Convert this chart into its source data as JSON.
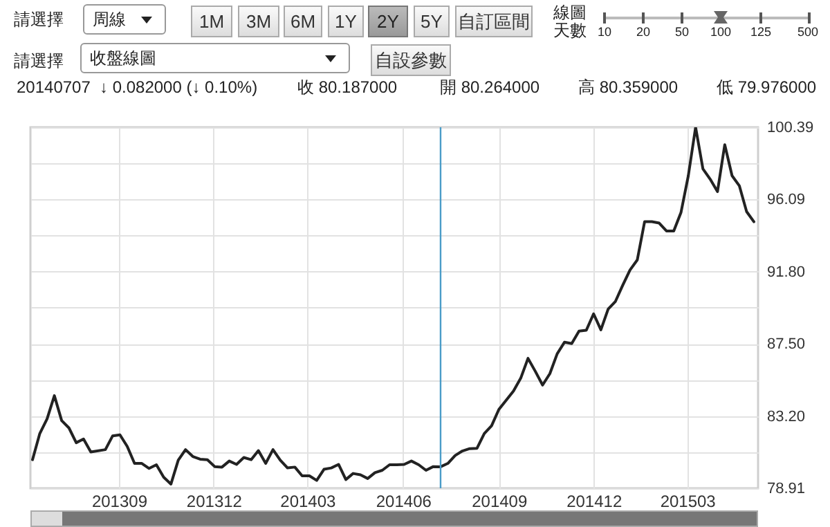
{
  "chart_data": {
    "type": "line",
    "annotations": [
      "請選擇",
      "周線",
      "1M",
      "3M",
      "6M",
      "1Y",
      "2Y",
      "5Y",
      "自訂區間",
      "線圖天數",
      "10",
      "20",
      "50",
      "100",
      "125",
      "500",
      "請選擇",
      "收盤線圖",
      "自設參數",
      "20140707",
      "↓ 0.082000 (↓ 0.10%)",
      "收 80.187000",
      "開 80.264000",
      "高 80.359000",
      "低 79.976000"
    ],
    "x": [
      "2013-06-10",
      "2013-06-17",
      "2013-06-24",
      "2013-07-01",
      "2013-07-08",
      "2013-07-15",
      "2013-07-22",
      "2013-07-29",
      "2013-08-05",
      "2013-08-19",
      "2013-08-26",
      "2013-09-02",
      "2013-09-09",
      "2013-09-16",
      "2013-09-23",
      "2013-09-30",
      "2013-10-07",
      "2013-10-14",
      "2013-10-21",
      "2013-10-28",
      "2013-11-04",
      "2013-11-11",
      "2013-11-18",
      "2013-11-25",
      "2013-12-02",
      "2013-12-09",
      "2013-12-16",
      "2013-12-23",
      "2013-12-30",
      "2014-01-06",
      "2014-01-13",
      "2014-01-20",
      "2014-01-27",
      "2014-02-03",
      "2014-02-10",
      "2014-02-17",
      "2014-02-24",
      "2014-03-03",
      "2014-03-10",
      "2014-03-17",
      "2014-03-24",
      "2014-03-31",
      "2014-04-07",
      "2014-04-14",
      "2014-04-21",
      "2014-04-28",
      "2014-05-05",
      "2014-05-12",
      "2014-05-19",
      "2014-05-26",
      "2014-06-02",
      "2014-06-09",
      "2014-06-16",
      "2014-06-23",
      "2014-06-30",
      "2014-07-07",
      "2014-07-14",
      "2014-07-21",
      "2014-07-28",
      "2014-08-04",
      "2014-08-11",
      "2014-08-18",
      "2014-08-25",
      "2014-09-01",
      "2014-09-08",
      "2014-09-15",
      "2014-09-22",
      "2014-09-29",
      "2014-10-06",
      "2014-10-13",
      "2014-10-20",
      "2014-10-27",
      "2014-11-03",
      "2014-11-10",
      "2014-11-17",
      "2014-11-24",
      "2014-12-01",
      "2014-12-08",
      "2014-12-15",
      "2014-12-22",
      "2014-12-29",
      "2015-01-05",
      "2015-01-12",
      "2015-01-19",
      "2015-01-26",
      "2015-02-02",
      "2015-02-09",
      "2015-02-16",
      "2015-02-23",
      "2015-03-02",
      "2015-03-09",
      "2015-03-16",
      "2015-03-23",
      "2015-03-30",
      "2015-04-06",
      "2015-04-13",
      "2015-04-20",
      "2015-04-27",
      "2015-05-04"
    ],
    "series": [
      {
        "color": "#222222",
        "values": [
          80.61,
          82.17,
          83.04,
          84.42,
          82.94,
          82.5,
          81.62,
          81.84,
          81.07,
          81.21,
          82.03,
          82.09,
          81.4,
          80.39,
          80.39,
          80.09,
          80.31,
          79.57,
          79.16,
          80.58,
          81.21,
          80.8,
          80.64,
          80.61,
          80.2,
          80.17,
          80.53,
          80.33,
          80.74,
          80.61,
          81.15,
          80.39,
          81.21,
          80.58,
          80.12,
          80.17,
          79.65,
          79.65,
          79.38,
          80.04,
          80.12,
          80.33,
          79.43,
          79.79,
          79.71,
          79.49,
          79.84,
          79.98,
          80.31,
          80.31,
          80.33,
          80.53,
          80.31,
          79.98,
          80.2,
          80.19,
          80.39,
          80.86,
          81.13,
          81.27,
          81.29,
          82.17,
          82.63,
          83.6,
          84.15,
          84.69,
          85.46,
          86.64,
          85.87,
          85.05,
          85.73,
          86.91,
          87.6,
          87.52,
          88.26,
          88.31,
          89.29,
          88.34,
          89.57,
          90.03,
          90.99,
          91.9,
          92.5,
          94.77,
          94.77,
          94.69,
          94.22,
          94.22,
          95.33,
          97.51,
          100.39,
          97.92,
          97.3,
          96.56,
          99.35,
          97.51,
          96.91,
          95.37,
          94.77
        ]
      }
    ],
    "xlim": [
      "2013-06-08",
      "2015-05-08"
    ],
    "xticks": [
      {
        "value": "2013-09-01",
        "label": "201309"
      },
      {
        "value": "2013-12-01",
        "label": "201312"
      },
      {
        "value": "2014-03-01",
        "label": "201403"
      },
      {
        "value": "2014-06-01",
        "label": "201406"
      },
      {
        "value": "2014-09-01",
        "label": "201409"
      },
      {
        "value": "2014-12-01",
        "label": "201412"
      },
      {
        "value": "2015-03-01",
        "label": "201503"
      }
    ],
    "ylim": [
      78.91,
      100.39
    ],
    "yticks": [
      78.91,
      {
        "value": 81.06,
        "label": null
      },
      {
        "value": 83.2,
        "label": "83.20"
      },
      {
        "value": 85.35,
        "label": null
      },
      {
        "value": 87.5,
        "label": "87.50"
      },
      {
        "value": 89.65,
        "label": null
      },
      {
        "value": 91.8,
        "label": "91.80"
      },
      {
        "value": 93.95,
        "label": null
      },
      96.09,
      {
        "value": 98.24,
        "label": null
      },
      100.39
    ],
    "ref_lines": [
      {
        "axis": "x",
        "value": "2014-07-07",
        "color": "#4a9cc8"
      }
    ],
    "grid": true,
    "marker": "none",
    "line_style": "solid"
  }
}
